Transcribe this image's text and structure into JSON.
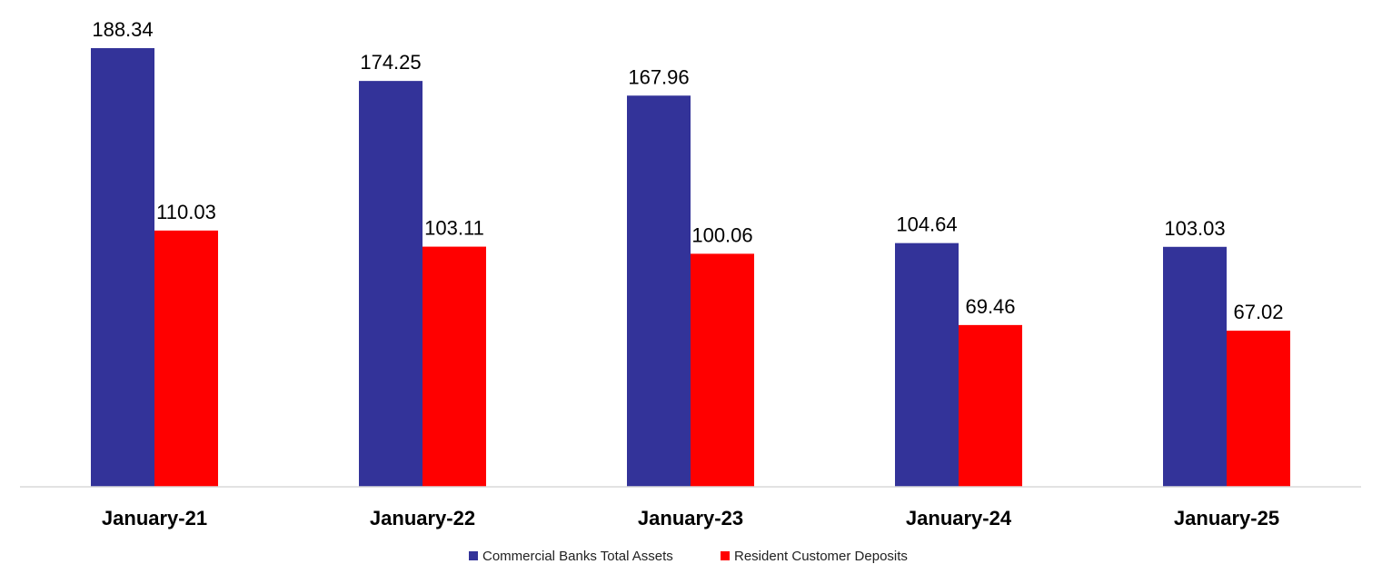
{
  "chart_data": {
    "type": "bar",
    "categories": [
      "January-21",
      "January-22",
      "January-23",
      "January-24",
      "January-25"
    ],
    "series": [
      {
        "name": "Commercial Banks Total Assets",
        "values": [
          188.34,
          174.25,
          167.96,
          104.64,
          103.03
        ],
        "color": "#333399"
      },
      {
        "name": "Resident Customer Deposits",
        "values": [
          110.03,
          103.11,
          100.06,
          69.46,
          67.02
        ],
        "color": "#ff0000"
      }
    ],
    "ylim": [
      0,
      188.34
    ],
    "grid": false,
    "legend_position": "bottom"
  }
}
